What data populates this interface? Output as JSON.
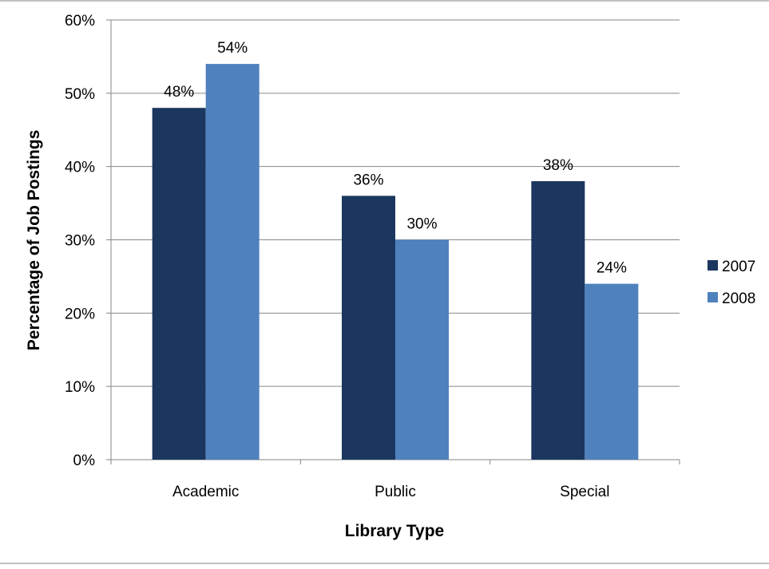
{
  "chart_data": {
    "type": "bar",
    "categories": [
      "Academic",
      "Public",
      "Special"
    ],
    "series": [
      {
        "name": "2007",
        "values": [
          48,
          36,
          38
        ],
        "color": "#1b375f"
      },
      {
        "name": "2008",
        "values": [
          54,
          30,
          24
        ],
        "color": "#4f81bd"
      }
    ],
    "data_labels": {
      "2007": [
        "48%",
        "36%",
        "38%"
      ],
      "2008": [
        "54%",
        "30%",
        "24%"
      ]
    },
    "title": "",
    "xlabel": "Library Type",
    "ylabel": "Percentage of Job Postings",
    "ylim": [
      0,
      60
    ],
    "yticks": [
      0,
      10,
      20,
      30,
      40,
      50,
      60
    ],
    "ytick_labels": [
      "0%",
      "10%",
      "20%",
      "30%",
      "40%",
      "50%",
      "60%"
    ],
    "grid": true,
    "legend_position": "right"
  }
}
